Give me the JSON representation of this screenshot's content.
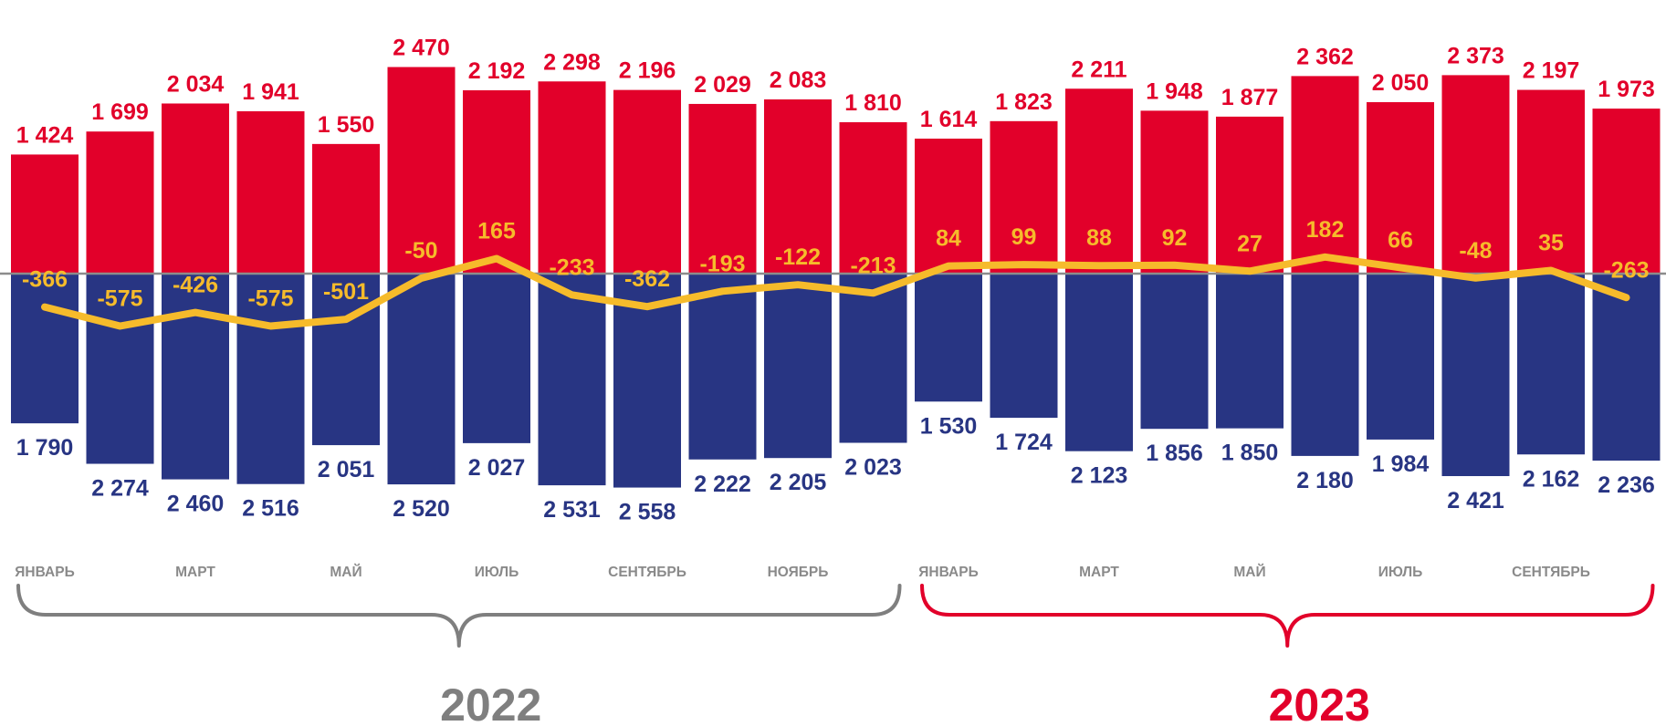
{
  "chart_data": {
    "type": "bar",
    "series": [
      {
        "values": [
          1424,
          1699,
          2034,
          1941,
          1550,
          2470,
          2192,
          2298,
          2196,
          2029,
          2083,
          1810,
          1614,
          1823,
          2211,
          1948,
          1877,
          2362,
          2050,
          2373,
          2197,
          1973
        ]
      },
      {
        "values": [
          1790,
          2274,
          2460,
          2516,
          2051,
          2520,
          2027,
          2531,
          2558,
          2222,
          2205,
          2023,
          1530,
          1724,
          2123,
          1856,
          1850,
          2180,
          1984,
          2421,
          2162,
          2236
        ]
      },
      {
        "type": "line",
        "values": [
          -366,
          -575,
          -426,
          -575,
          -501,
          -50,
          165,
          -233,
          -362,
          -193,
          -122,
          -213,
          84,
          99,
          88,
          92,
          27,
          182,
          66,
          -48,
          35,
          -263
        ]
      }
    ],
    "labels_top": [
      "1 424",
      "1 699",
      "2 034",
      "1 941",
      "1 550",
      "2 470",
      "2 192",
      "2 298",
      "2 196",
      "2 029",
      "2 083",
      "1 810",
      "1 614",
      "1 823",
      "2 211",
      "1 948",
      "1 877",
      "2 362",
      "2 050",
      "2 373",
      "2 197",
      "1 973"
    ],
    "labels_bottom": [
      "1 790",
      "2 274",
      "2 460",
      "2 516",
      "2 051",
      "2 520",
      "2 027",
      "2 531",
      "2 558",
      "2 222",
      "2 205",
      "2 023",
      "1 530",
      "1 724",
      "2 123",
      "1 856",
      "1 850",
      "2 180",
      "1 984",
      "2 421",
      "2 162",
      "2 236"
    ],
    "labels_balance": [
      "-366",
      "-575",
      "-426",
      "-575",
      "-501",
      "-50",
      "165",
      "-233",
      "-362",
      "-193",
      "-122",
      "-213",
      "84",
      "99",
      "88",
      "92",
      "27",
      "182",
      "66",
      "-48",
      "35",
      "-263"
    ],
    "month_labels": [
      {
        "index": 0,
        "text": "ЯНВАРЬ"
      },
      {
        "index": 2,
        "text": "МАРТ"
      },
      {
        "index": 4,
        "text": "МАЙ"
      },
      {
        "index": 6,
        "text": "ИЮЛЬ"
      },
      {
        "index": 8,
        "text": "СЕНТЯБРЬ"
      },
      {
        "index": 10,
        "text": "НОЯБРЬ"
      },
      {
        "index": 12,
        "text": "ЯНВАРЬ"
      },
      {
        "index": 14,
        "text": "МАРТ"
      },
      {
        "index": 16,
        "text": "МАЙ"
      },
      {
        "index": 18,
        "text": "ИЮЛЬ"
      },
      {
        "index": 20,
        "text": "СЕНТЯБРЬ"
      }
    ],
    "groups": [
      {
        "label": "2022",
        "start": 0,
        "end": 11,
        "color": "#7f7f7f"
      },
      {
        "label": "2023",
        "start": 12,
        "end": 21,
        "color": "#e2002a"
      }
    ],
    "colors": {
      "positive": "#e2002a",
      "negative": "#283583",
      "balance": "#f6bb2b",
      "baseline": "#8c8c8c"
    },
    "grid": false,
    "legend": "none"
  }
}
